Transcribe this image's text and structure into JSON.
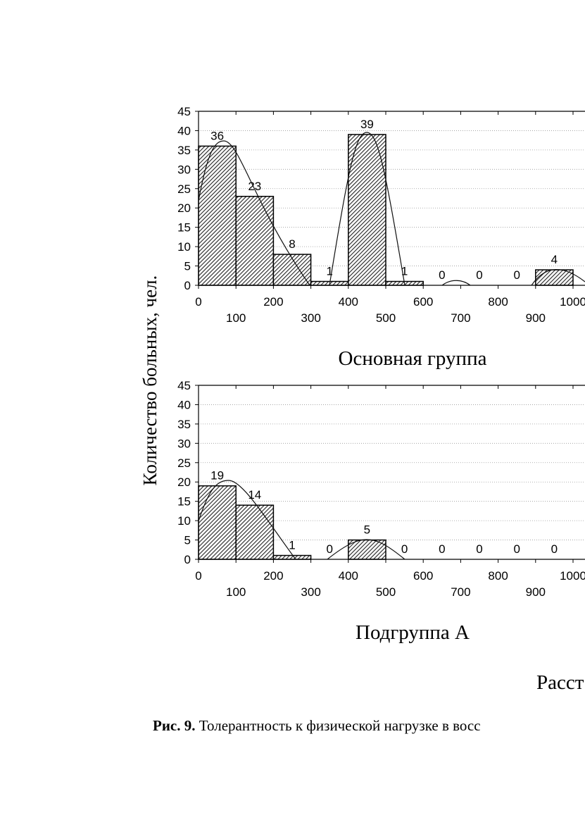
{
  "chart_data": [
    {
      "type": "histogram",
      "title": "Основная группа",
      "bins": [
        0,
        100,
        200,
        300,
        400,
        500,
        600,
        700,
        800,
        900,
        1000
      ],
      "values": [
        36,
        23,
        8,
        1,
        39,
        1,
        0,
        0,
        0,
        4
      ],
      "xlim": [
        0,
        1100
      ],
      "ylim": [
        0,
        45
      ],
      "xticks": [
        0,
        100,
        200,
        300,
        400,
        500,
        600,
        700,
        800,
        900,
        1000
      ],
      "yticks": [
        0,
        5,
        10,
        15,
        20,
        25,
        30,
        35,
        40,
        45
      ],
      "grid": true
    },
    {
      "type": "histogram",
      "title": "Подгруппа А",
      "bins": [
        0,
        100,
        200,
        300,
        400,
        500,
        600,
        700,
        800,
        900,
        1000
      ],
      "values": [
        19,
        14,
        1,
        0,
        5,
        0,
        0,
        0,
        0,
        0
      ],
      "xlim": [
        0,
        1100
      ],
      "ylim": [
        0,
        45
      ],
      "xticks": [
        0,
        100,
        200,
        300,
        400,
        500,
        600,
        700,
        800,
        900,
        1000
      ],
      "yticks": [
        0,
        5,
        10,
        15,
        20,
        25,
        30,
        35,
        40,
        45
      ],
      "grid": true
    }
  ],
  "y_label": "Количество больных, чел.",
  "x_label": "Расст",
  "caption": {
    "label": "Рис. 9.",
    "text": "Толерантность к физической нагрузке в восс"
  }
}
